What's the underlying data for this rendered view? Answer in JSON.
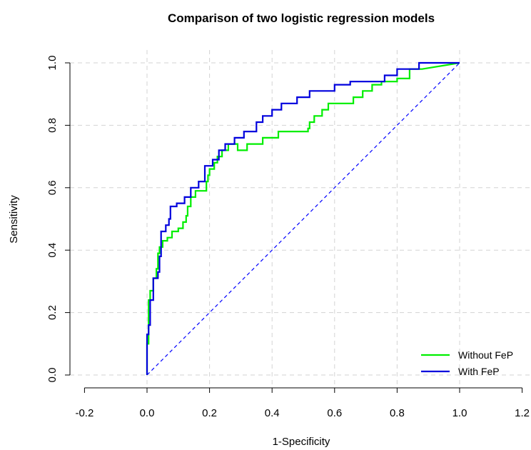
{
  "chart_data": {
    "type": "line",
    "title": "Comparison of two logistic regression models",
    "xlabel": "1-Specificity",
    "ylabel": "Sensitivity",
    "xlim": [
      -0.2,
      1.2
    ],
    "ylim": [
      0.0,
      1.0
    ],
    "x_ticks": [
      "-0.2",
      "0.0",
      "0.2",
      "0.4",
      "0.6",
      "0.8",
      "1.0",
      "1.2"
    ],
    "y_ticks": [
      "0.0",
      "0.2",
      "0.4",
      "0.6",
      "0.8",
      "1.0"
    ],
    "grid": true,
    "legend_position": "bottom-right",
    "reference_line": {
      "x": [
        0,
        1
      ],
      "y": [
        0,
        1
      ],
      "color": "#0000ff",
      "style": "dashed"
    },
    "series": [
      {
        "name": "Without FeP",
        "color": "#00ee00",
        "x": [
          0,
          0,
          0.005,
          0.005,
          0.01,
          0.01,
          0.02,
          0.02,
          0.03,
          0.03,
          0.035,
          0.035,
          0.04,
          0.04,
          0.05,
          0.05,
          0.065,
          0.065,
          0.08,
          0.08,
          0.1,
          0.1,
          0.115,
          0.115,
          0.125,
          0.125,
          0.13,
          0.13,
          0.14,
          0.14,
          0.155,
          0.155,
          0.19,
          0.19,
          0.195,
          0.195,
          0.2,
          0.2,
          0.215,
          0.215,
          0.225,
          0.225,
          0.24,
          0.24,
          0.26,
          0.26,
          0.29,
          0.29,
          0.32,
          0.32,
          0.37,
          0.37,
          0.42,
          0.42,
          0.515,
          0.515,
          0.52,
          0.52,
          0.535,
          0.535,
          0.56,
          0.56,
          0.58,
          0.58,
          0.66,
          0.66,
          0.69,
          0.69,
          0.72,
          0.72,
          0.75,
          0.75,
          0.8,
          0.8,
          0.84,
          0.84,
          0.88,
          0.88,
          1.0
        ],
        "y": [
          0,
          0.1,
          0.1,
          0.24,
          0.24,
          0.27,
          0.27,
          0.31,
          0.31,
          0.34,
          0.34,
          0.39,
          0.39,
          0.41,
          0.41,
          0.43,
          0.43,
          0.44,
          0.44,
          0.46,
          0.46,
          0.47,
          0.47,
          0.49,
          0.49,
          0.51,
          0.51,
          0.54,
          0.54,
          0.57,
          0.57,
          0.59,
          0.59,
          0.62,
          0.62,
          0.64,
          0.64,
          0.66,
          0.66,
          0.68,
          0.68,
          0.7,
          0.7,
          0.72,
          0.72,
          0.74,
          0.74,
          0.72,
          0.72,
          0.74,
          0.74,
          0.76,
          0.76,
          0.78,
          0.78,
          0.79,
          0.79,
          0.81,
          0.81,
          0.83,
          0.83,
          0.85,
          0.85,
          0.87,
          0.87,
          0.89,
          0.89,
          0.91,
          0.91,
          0.93,
          0.93,
          0.94,
          0.94,
          0.95,
          0.95,
          0.98,
          0.98,
          0.98,
          1.0
        ]
      },
      {
        "name": "With FeP",
        "color": "#0000dd",
        "x": [
          0,
          0,
          0.005,
          0.005,
          0.01,
          0.01,
          0.02,
          0.02,
          0.035,
          0.035,
          0.04,
          0.04,
          0.045,
          0.045,
          0.06,
          0.06,
          0.07,
          0.07,
          0.075,
          0.075,
          0.095,
          0.095,
          0.12,
          0.12,
          0.14,
          0.14,
          0.165,
          0.165,
          0.185,
          0.185,
          0.21,
          0.21,
          0.23,
          0.23,
          0.25,
          0.25,
          0.28,
          0.28,
          0.29,
          0.29,
          0.31,
          0.31,
          0.35,
          0.35,
          0.37,
          0.37,
          0.4,
          0.4,
          0.43,
          0.43,
          0.48,
          0.48,
          0.52,
          0.52,
          0.6,
          0.6,
          0.65,
          0.65,
          0.76,
          0.76,
          0.8,
          0.8,
          0.87,
          0.87,
          1.0
        ],
        "y": [
          0,
          0.13,
          0.13,
          0.16,
          0.16,
          0.24,
          0.24,
          0.31,
          0.31,
          0.33,
          0.33,
          0.38,
          0.38,
          0.46,
          0.46,
          0.48,
          0.48,
          0.5,
          0.5,
          0.54,
          0.54,
          0.55,
          0.55,
          0.57,
          0.57,
          0.6,
          0.6,
          0.62,
          0.62,
          0.67,
          0.67,
          0.69,
          0.69,
          0.72,
          0.72,
          0.74,
          0.74,
          0.76,
          0.76,
          0.76,
          0.76,
          0.78,
          0.78,
          0.81,
          0.81,
          0.83,
          0.83,
          0.85,
          0.85,
          0.87,
          0.87,
          0.89,
          0.89,
          0.91,
          0.91,
          0.93,
          0.93,
          0.94,
          0.94,
          0.96,
          0.96,
          0.98,
          0.98,
          1.0,
          1.0
        ]
      }
    ]
  }
}
